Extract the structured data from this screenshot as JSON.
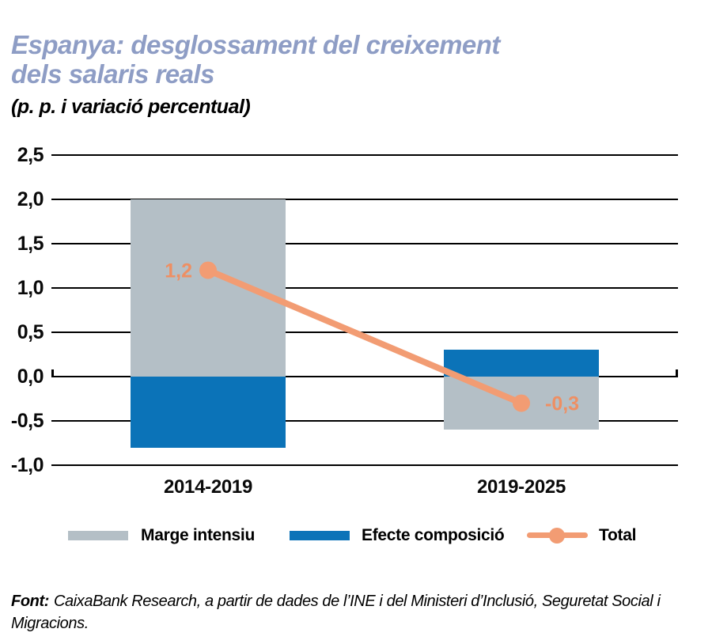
{
  "header": {
    "title_line1": "Espanya: desglossament del creixement",
    "title_line2": "dels salaris reals",
    "subtitle": "(p. p. i variació percentual)"
  },
  "chart_data": {
    "type": "bar",
    "subtype": "stacked-bars-with-total-line-overlay",
    "title": "Espanya: desglossament del creixement dels salaris reals",
    "units_label": "(p. p. i variació percentual)",
    "categories": [
      "2014-2019",
      "2019-2025"
    ],
    "series": [
      {
        "name": "Marge intensiu",
        "render": "bar",
        "color": "#b4bfc6",
        "values": [
          2.0,
          -0.6
        ]
      },
      {
        "name": "Efecte composició",
        "render": "bar",
        "color": "#0b73b8",
        "values": [
          -0.8,
          0.3
        ]
      },
      {
        "name": "Total",
        "render": "line",
        "color": "#f29c73",
        "values": [
          1.2,
          -0.3
        ],
        "point_labels": [
          "1,2",
          "-0,3"
        ],
        "point_label_color": "#ee8f63"
      }
    ],
    "xlabel": "",
    "ylabel": "",
    "ylim": [
      -1.0,
      2.5
    ],
    "ytick_values": [
      2.5,
      2.0,
      1.5,
      1.0,
      0.5,
      0.0,
      -0.5,
      -1.0
    ],
    "ytick_labels": [
      "2,5",
      "2,0",
      "1,5",
      "1,0",
      "0,5",
      "0,0",
      "-0,5",
      "-1,0"
    ],
    "grid": "horizontal",
    "grid_color": "#000000",
    "legend_position": "bottom"
  },
  "legend": {
    "items": [
      {
        "label": "Marge intensiu",
        "swatch": "gray-rect"
      },
      {
        "label": "Efecte composició",
        "swatch": "blue-rect"
      },
      {
        "label": "Total",
        "swatch": "salmon-line-dot"
      }
    ]
  },
  "footer": {
    "source_label": "Font:",
    "source_text": "CaixaBank Research, a partir de dades de l’INE i del Ministeri d’Inclusió, Seguretat Social i Migracions."
  },
  "colors": {
    "title_text": "#8e9dc5",
    "body_text": "#000000",
    "bar_gray": "#b4bfc6",
    "bar_blue": "#0b73b8",
    "line_salmon": "#f29c73"
  }
}
